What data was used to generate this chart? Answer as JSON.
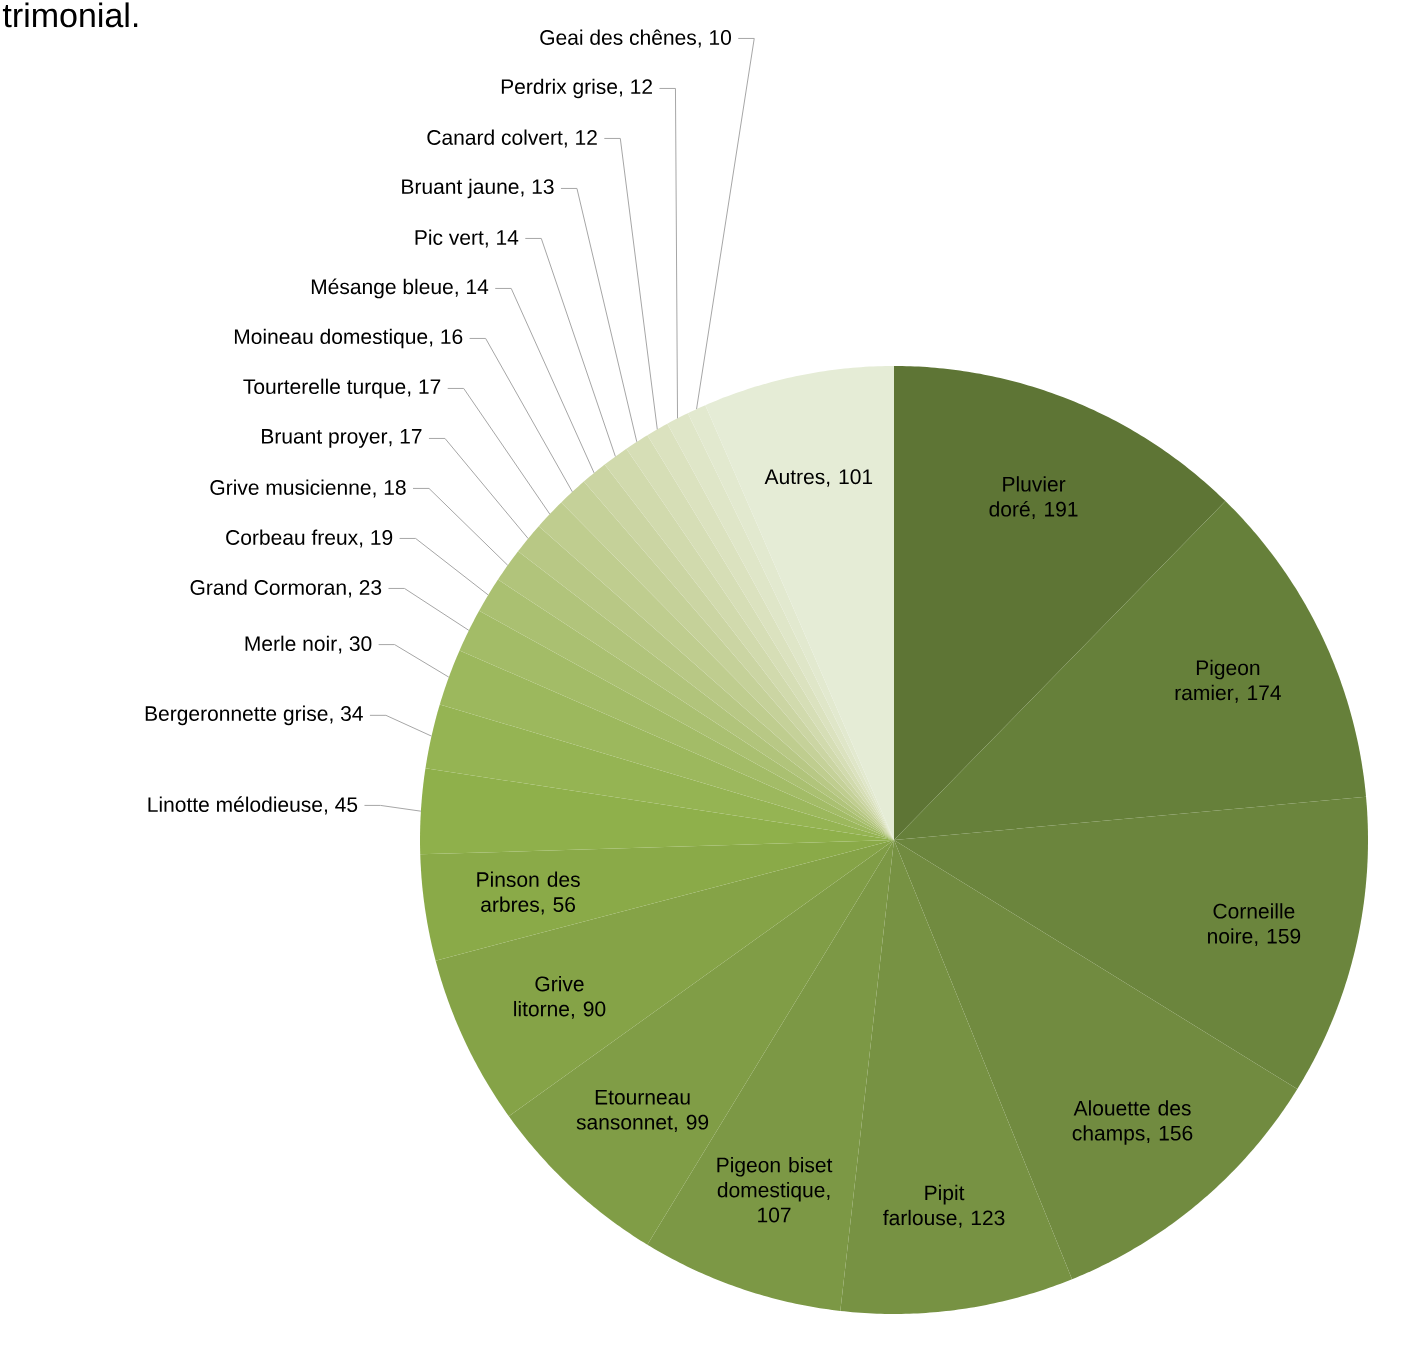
{
  "chart_data": {
    "type": "pie",
    "categories": [
      "Pluvier doré",
      "Pigeon ramier",
      "Corneille noire",
      "Alouette des champs",
      "Pipit farlouse",
      "Pigeon biset domestique",
      "Etourneau sansonnet",
      "Grive litorne",
      "Pinson des arbres",
      "Linotte mélodieuse",
      "Bergeronnette grise",
      "Merle noir",
      "Grand Cormoran",
      "Corbeau freux",
      "Grive musicienne",
      "Bruant proyer",
      "Tourterelle turque",
      "Moineau domestique",
      "Mésange bleue",
      "Pic vert",
      "Bruant jaune",
      "Canard colvert",
      "Perdrix grise",
      "Geai des chênes",
      "Autres"
    ],
    "values": [
      191,
      174,
      159,
      156,
      123,
      107,
      99,
      90,
      56,
      45,
      34,
      30,
      23,
      19,
      18,
      17,
      17,
      16,
      14,
      14,
      13,
      12,
      12,
      10,
      101
    ],
    "colors": [
      "#5e7535",
      "#66803a",
      "#6b853d",
      "#718b40",
      "#779243",
      "#7c9845",
      "#809d46",
      "#85a347",
      "#8aaa48",
      "#8fb04b",
      "#95b453",
      "#9cb85d",
      "#a3bc67",
      "#aac071",
      "#b1c47b",
      "#b8c885",
      "#bfcd8f",
      "#c5d199",
      "#cbd5a3",
      "#d1daad",
      "#d6deb6",
      "#dbe2bf",
      "#dfe6c8",
      "#e2e9cf",
      "#e5ecd6"
    ],
    "value_labels": [
      ", 191",
      ", 174",
      ", 159",
      ", 156",
      ", 123",
      ", 107",
      ", 99",
      ", 90",
      ", 56",
      ", 45",
      ", 34",
      ", 30",
      ", 23",
      ", 19",
      ", 18",
      ", 17",
      ", 17",
      ", 16",
      ", 14",
      ", 14",
      ", 13",
      ", 12",
      ", 12",
      ", 10",
      ", 101"
    ],
    "annotations": [
      "trimonial."
    ]
  }
}
